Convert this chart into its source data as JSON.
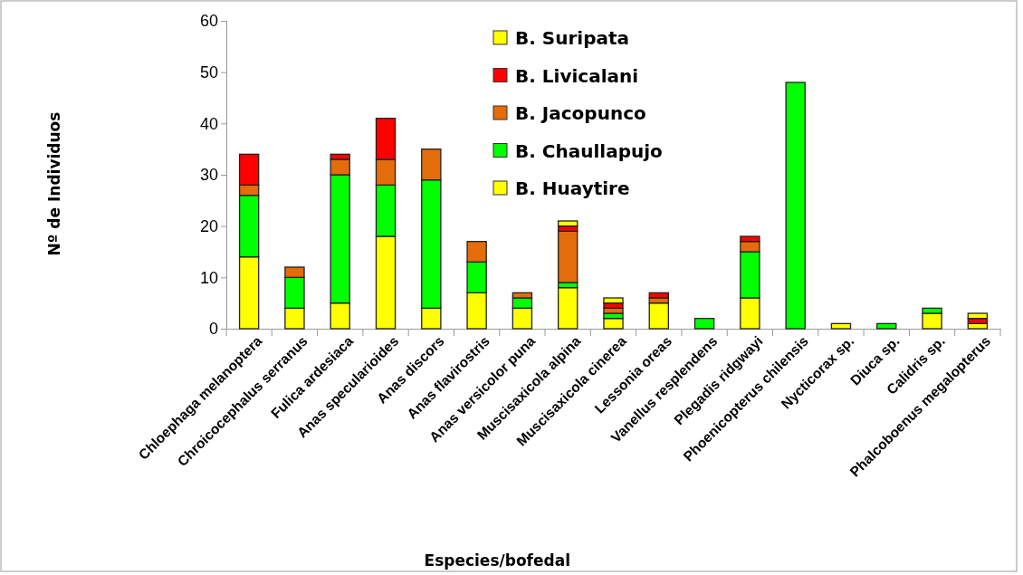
{
  "chart_data": {
    "type": "bar",
    "stacked": true,
    "xlabel": "Especies/bofedal",
    "ylabel": "Nº de Individuos",
    "categories": [
      "Chloephaga melanoptera",
      "Chroicocephalus serranus",
      "Fulica  ardesiaca",
      "Anas specularioides",
      "Anas  discors",
      "Anas flavirostris",
      "Anas versicolor puna",
      "Muscisaxicola alpina",
      "Muscisaxicola  cinerea",
      "Lessonia  oreas",
      "Vanellus  resplendens",
      "Plegadis  ridgwayi",
      "Phoenicopterus  chilensis",
      "Nycticorax sp.",
      "Diuca sp.",
      "Calidris sp.",
      "Phalcoboenus  megalopterus"
    ],
    "series": [
      {
        "name": "B. Huaytire",
        "color": "#ffff00",
        "values": [
          14,
          4,
          5,
          18,
          4,
          7,
          4,
          8,
          2,
          5,
          0,
          6,
          0,
          1,
          0,
          3,
          1
        ]
      },
      {
        "name": "B. Chaullapujo",
        "color": "#00ff00",
        "values": [
          12,
          6,
          25,
          10,
          25,
          6,
          2,
          1,
          1,
          0,
          2,
          9,
          48,
          0,
          1,
          1,
          0
        ]
      },
      {
        "name": "B. Jacopunco",
        "color": "#e46c0a",
        "values": [
          2,
          2,
          3,
          5,
          6,
          4,
          1,
          10,
          1,
          1,
          0,
          2,
          0,
          0,
          0,
          0,
          0
        ]
      },
      {
        "name": "B. Livicalani",
        "color": "#ff0000",
        "values": [
          6,
          0,
          1,
          8,
          0,
          0,
          0,
          1,
          1,
          1,
          0,
          1,
          0,
          0,
          0,
          0,
          1
        ]
      },
      {
        "name": "B. Suripata",
        "color": "#ffff00",
        "values": [
          0,
          0,
          0,
          0,
          0,
          0,
          0,
          1,
          1,
          0,
          0,
          0,
          0,
          0,
          0,
          0,
          1
        ]
      }
    ],
    "ylim": [
      0,
      60
    ],
    "yticks": [
      0,
      10,
      20,
      30,
      40,
      50,
      60
    ],
    "grid": false,
    "legend": "top"
  }
}
